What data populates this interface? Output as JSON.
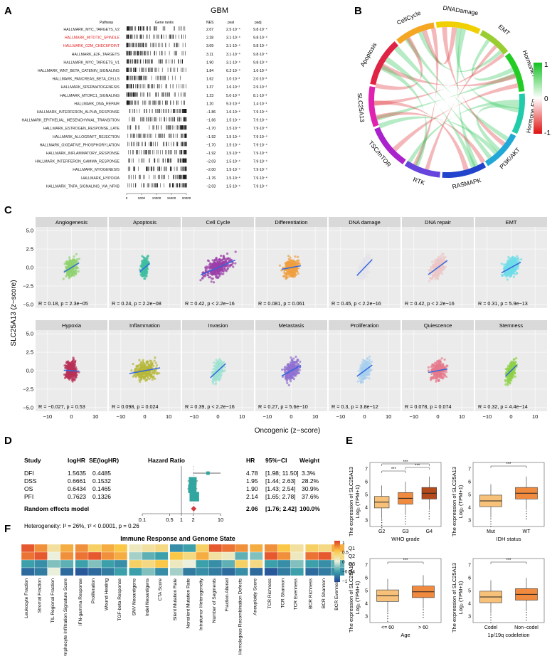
{
  "panel_letters": [
    "A",
    "B",
    "C",
    "D",
    "E",
    "F"
  ],
  "colors": {
    "red": "#e41a1c",
    "green": "#1aa84a",
    "fit_line": "#3366dd",
    "forest_box": "#2fa6a0",
    "diamond": "#d6383b",
    "box_light": "#f7c17a",
    "box_mid": "#f08a3e",
    "box_dark": "#b34a1c"
  },
  "panelA": {
    "title": "GBM",
    "headers": {
      "pathway": "Pathway",
      "ranks": "Gene ranks",
      "nes": "NES",
      "pval": "pval",
      "padj": "padj"
    },
    "axis_ticks": [
      "0",
      "5000",
      "10000",
      "15000",
      "20000"
    ],
    "rows": [
      {
        "name": "HALLMARK_MYC_TARGETS_V2",
        "nes": "2.07",
        "pval": "2.5·10⁻⁴",
        "padj": "9.8·10⁻⁴",
        "highlight": false
      },
      {
        "name": "HALLMARK_MITOTIC_SPINDLE",
        "nes": "2.28",
        "pval": "3.1·10⁻⁴",
        "padj": "9.8·10⁻⁴",
        "highlight": true
      },
      {
        "name": "HALLMARK_G2M_CHECKPOINT",
        "nes": "3.09",
        "pval": "3.1·10⁻⁴",
        "padj": "9.8·10⁻⁴",
        "highlight": true
      },
      {
        "name": "HALLMARK_E2F_TARGETS",
        "nes": "3.11",
        "pval": "3.1·10⁻⁴",
        "padj": "9.8·10⁻⁴",
        "highlight": false
      },
      {
        "name": "HALLMARK_MYC_TARGETS_V1",
        "nes": "1.90",
        "pval": "3.1·10⁻⁴",
        "padj": "9.8·10⁻⁴",
        "highlight": false
      },
      {
        "name": "HALLMARK_WNT_BETA_CATENIN_SIGNALING",
        "nes": "1.84",
        "pval": "6.2·10⁻⁴",
        "padj": "1.6·10⁻²",
        "highlight": false
      },
      {
        "name": "HALLMARK_PANCREAS_BETA_CELLS",
        "nes": "1.62",
        "pval": "1.0·10⁻²",
        "padj": "2.0·10⁻²",
        "highlight": false
      },
      {
        "name": "HALLMARK_SPERMATOGENESIS",
        "nes": "1.37",
        "pval": "1.6·10⁻²",
        "padj": "2.9·10⁻²",
        "highlight": false
      },
      {
        "name": "HALLMARK_MTORC1_SIGNALING",
        "nes": "1.23",
        "pval": "5.0·10⁻²",
        "padj": "8.1·10⁻²",
        "highlight": false
      },
      {
        "name": "HALLMARK_DNA_REPAIR",
        "nes": "1.20",
        "pval": "9.3·10⁻²",
        "padj": "1.4·10⁻¹",
        "highlight": false
      },
      {
        "name": "HALLMARK_INTERFERON_ALPHA_RESPONSE",
        "nes": "−1.86",
        "pval": "1.6·10⁻⁴",
        "padj": "7.9·10⁻⁴",
        "highlight": false
      },
      {
        "name": "HALLMARK_EPITHELIAL_MESENCHYMAL_TRANSITION",
        "nes": "−1.66",
        "pval": "1.5·10⁻⁴",
        "padj": "7.9·10⁻⁴",
        "highlight": false
      },
      {
        "name": "HALLMARK_ESTROGEN_RESPONSE_LATE",
        "nes": "−1.70",
        "pval": "1.5·10⁻⁴",
        "padj": "7.9·10⁻⁴",
        "highlight": false
      },
      {
        "name": "HALLMARK_ALLOGRAFT_REJECTION",
        "nes": "−1.92",
        "pval": "1.5·10⁻⁴",
        "padj": "7.9·10⁻⁴",
        "highlight": false
      },
      {
        "name": "HALLMARK_OXIDATIVE_PHOSPHORYLATION",
        "nes": "−1.70",
        "pval": "1.5·10⁻⁴",
        "padj": "7.9·10⁻⁴",
        "highlight": false
      },
      {
        "name": "HALLMARK_INFLAMMATORY_RESPONSE",
        "nes": "−1.92",
        "pval": "1.5·10⁻⁴",
        "padj": "7.9·10⁻⁴",
        "highlight": false
      },
      {
        "name": "HALLMARK_INTERFERON_GAMMA_RESPONSE",
        "nes": "−2.03",
        "pval": "1.5·10⁻⁴",
        "padj": "7.9·10⁻⁴",
        "highlight": false
      },
      {
        "name": "HALLMARK_MYOGENESIS",
        "nes": "−2.00",
        "pval": "1.5·10⁻⁴",
        "padj": "7.9·10⁻⁴",
        "highlight": false
      },
      {
        "name": "HALLMARK_HYPOXIA",
        "nes": "−1.76",
        "pval": "1.5·10⁻⁴",
        "padj": "7.9·10⁻⁴",
        "highlight": false
      },
      {
        "name": "HALLMARK_TNFA_SIGNALING_VIA_NFKB",
        "nes": "−2.03",
        "pval": "1.5·10⁻⁴",
        "padj": "7.9·10⁻⁴",
        "highlight": false
      }
    ]
  },
  "panelB": {
    "sectors": [
      {
        "name": "CellCycle",
        "color": "#f5a623",
        "span": 1.0
      },
      {
        "name": "DNADamage",
        "color": "#f0d000",
        "span": 1.1
      },
      {
        "name": "EMT",
        "color": "#9acd32",
        "span": 0.8
      },
      {
        "name": "Hormone AR",
        "color": "#22cc22",
        "span": 1.0
      },
      {
        "name": "Hormone ER",
        "color": "#22ccaa",
        "span": 1.0
      },
      {
        "name": "PI3K/AKT",
        "color": "#22a8d6",
        "span": 1.0
      },
      {
        "name": "RASMAPK",
        "color": "#2244cc",
        "span": 1.1
      },
      {
        "name": "RTK",
        "color": "#6644dd",
        "span": 0.9
      },
      {
        "name": "TSC/mTOR",
        "color": "#aa22cc",
        "span": 1.1
      },
      {
        "name": "SLC25A13",
        "color": "#e022b0",
        "span": 1.0
      },
      {
        "name": "Apoptosis",
        "color": "#e02244",
        "span": 1.2
      }
    ],
    "legend": {
      "top": "1",
      "mid": "0",
      "bottom": "-1"
    }
  },
  "panelC": {
    "ylabel": "SLC25A13 (z−score)",
    "xlabel": "Oncogenic (z−score)",
    "y_ticks": [
      "5.0",
      "2.5",
      "0.0",
      "−2.5",
      "−5.0"
    ],
    "x_ticks": [
      "−10",
      "0",
      "10"
    ],
    "facets": [
      {
        "name": "Angiogenesis",
        "stat": "R = 0.18, p = 2.3e−05",
        "color": "#8fd16e",
        "slope": 0.1,
        "spread": 4,
        "dens": 220
      },
      {
        "name": "Apoptosis",
        "stat": "R = 0.24, p = 2.2e−08",
        "color": "#3fbfa0",
        "slope": 0.14,
        "spread": 2.5,
        "dens": 260
      },
      {
        "name": "Cell Cycle",
        "stat": "R = 0.42, p < 2.2e−16",
        "color": "#9b3fa8",
        "slope": 0.07,
        "spread": 9,
        "dens": 320
      },
      {
        "name": "Differentiation",
        "stat": "R = 0.081, p = 0.061",
        "color": "#f0a040",
        "slope": 0.03,
        "spread": 5,
        "dens": 300
      },
      {
        "name": "DNA damage",
        "stat": "R = 0.45, p < 2.2e−16",
        "color": "#e4e4ea",
        "slope": 0.17,
        "spread": 4,
        "dens": 260
      },
      {
        "name": "DNA repair",
        "stat": "R = 0.42, p < 2.2e−16",
        "color": "#edc7c7",
        "slope": 0.12,
        "spread": 5,
        "dens": 280
      },
      {
        "name": "EMT",
        "stat": "R = 0.31, p = 5.9e−13",
        "color": "#6fdde8",
        "slope": 0.09,
        "spread": 5,
        "dens": 300
      },
      {
        "name": "Hypoxia",
        "stat": "R = −0.027, p = 0.53",
        "color": "#b83055",
        "slope": -0.01,
        "spread": 4,
        "dens": 300
      },
      {
        "name": "Inflammation",
        "stat": "R = 0.098, p = 0.024",
        "color": "#b6b83a",
        "slope": 0.03,
        "spread": 8,
        "dens": 300
      },
      {
        "name": "Invasion",
        "stat": "R = 0.39, p < 2.2e−16",
        "color": "#9fe3d3",
        "slope": 0.15,
        "spread": 4,
        "dens": 280
      },
      {
        "name": "Metastasis",
        "stat": "R = 0.27, p = 5.6e−10",
        "color": "#9070d0",
        "slope": 0.09,
        "spread": 5,
        "dens": 300
      },
      {
        "name": "Proliferation",
        "stat": "R = 0.3, p = 3.8e−12",
        "color": "#a8d0ee",
        "slope": 0.12,
        "spread": 4,
        "dens": 260
      },
      {
        "name": "Quiescence",
        "stat": "R = 0.078, p = 0.074",
        "color": "#e67b8c",
        "slope": 0.03,
        "spread": 5,
        "dens": 300
      },
      {
        "name": "Stemness",
        "stat": "R = 0.32, p = 4.4e−14",
        "color": "#8fd14a",
        "slope": 0.16,
        "spread": 3,
        "dens": 260
      }
    ]
  },
  "panelD": {
    "headers": {
      "study": "Study",
      "loghr": "logHR",
      "se": "SE(logHR)",
      "hrplot": "Hazard Ratio",
      "hr": "HR",
      "ci": "95%−CI",
      "weight": "Weight"
    },
    "rows": [
      {
        "study": "DFI",
        "loghr": "1.5635",
        "se": "0.4485",
        "hr": "4.78",
        "ci": "[1.98; 11.50]",
        "weight": "3.3%",
        "hr_val": 4.78,
        "lo": 1.98,
        "hi": 11.5
      },
      {
        "study": "DSS",
        "loghr": "0.6661",
        "se": "0.1532",
        "hr": "1.95",
        "ci": "[1.44; 2.63]",
        "weight": "28.2%",
        "hr_val": 1.95,
        "lo": 1.44,
        "hi": 2.63
      },
      {
        "study": "OS",
        "loghr": "0.6434",
        "se": "0.1465",
        "hr": "1.90",
        "ci": "[1.43; 2.54]",
        "weight": "30.9%",
        "hr_val": 1.9,
        "lo": 1.43,
        "hi": 2.54
      },
      {
        "study": "PFI",
        "loghr": "0.7623",
        "se": "0.1326",
        "hr": "2.14",
        "ci": "[1.65; 2.78]",
        "weight": "37.6%",
        "hr_val": 2.14,
        "lo": 1.65,
        "hi": 2.78
      }
    ],
    "summary": {
      "label": "Random effects model",
      "hr": "2.06",
      "ci": "[1.76; 2.42]",
      "weight": "100.0%",
      "hr_val": 2.06,
      "lo": 1.76,
      "hi": 2.42
    },
    "heterogeneity": "Heterogeneity: I² = 26%, τ² < 0.0001, p = 0.26",
    "axis_ticks": [
      "0.1",
      "0.5",
      "1",
      "2",
      "10"
    ]
  },
  "panelE": {
    "ylabel": "The expression of SLC25A13",
    "ylabel2": "Log₂ (TPM+1)",
    "y_ticks": [
      "7",
      "6",
      "5",
      "4",
      "3"
    ],
    "plots": [
      {
        "xlabel": "WHO grade",
        "cats": [
          "G2",
          "G3",
          "G4"
        ],
        "sig": [
          "***",
          "***",
          "***"
        ]
      },
      {
        "xlabel": "IDH status",
        "cats": [
          "Mut",
          "WT"
        ],
        "sig": [
          "***"
        ]
      },
      {
        "xlabel": "Age",
        "cats": [
          "<= 60",
          "> 60"
        ],
        "sig": [
          "***"
        ]
      },
      {
        "xlabel": "1p/19q codeletion",
        "cats": [
          "Codel",
          "Non−codel"
        ],
        "sig": [
          "***"
        ]
      }
    ]
  },
  "panelF": {
    "title": "Immune Response and Genome State",
    "rows": [
      "Q1",
      "Q2",
      "Q3",
      "Q4"
    ],
    "legend_ticks": [
      "1",
      "0.5",
      "0",
      "−0.5",
      "−1"
    ],
    "columns": [
      "Leukocyte Fraction",
      "Stromal Fraction",
      "TIL Regional Fraction",
      "Lymphocyte Infiltration Signature Score",
      "IFN-gamma Response",
      "Proliferation",
      "Wound Healing",
      "TGF-beta Response",
      "SNV Neoantigens",
      "Indel Neoantigens",
      "CTA Score",
      "Silent Mutation Rate",
      "Nonsilent Mutation Rate",
      "Intratumor Heterogeneity",
      "Number of Segments",
      "Fraction Altered",
      "Homologous Recombination Defects",
      "Aneuploidy Score",
      "TCR Richness",
      "TCR Shannon",
      "TCR Evenness",
      "BCR Richness",
      "BCR Shannon",
      "BCR Evenness"
    ],
    "groups": [
      4,
      4,
      3,
      6,
      1,
      3,
      3
    ],
    "values": [
      [
        0.9,
        0.7,
        0.2,
        0.6,
        0.7,
        0.4,
        0.6,
        0.5,
        0.1,
        0.2,
        0.3,
        -0.6,
        -0.5,
        0.4,
        0.9,
        0.8,
        0.7,
        0.6,
        0.7,
        0.5,
        0.2,
        0.4,
        0.3,
        0.6
      ],
      [
        0.8,
        0.9,
        0.0,
        0.7,
        0.8,
        0.9,
        0.7,
        0.6,
        -0.2,
        -0.4,
        -0.5,
        0.5,
        0.3,
        0.6,
        0.2,
        0.1,
        -0.4,
        -0.3,
        0.9,
        0.7,
        0.1,
        0.8,
        0.9,
        0.3
      ],
      [
        -0.5,
        -0.6,
        -0.3,
        -0.4,
        -0.5,
        -0.3,
        -0.5,
        -0.6,
        0.4,
        0.3,
        0.5,
        0.1,
        0.0,
        -0.5,
        -0.6,
        -0.4,
        0.4,
        0.3,
        -0.5,
        -0.6,
        -0.3,
        -0.5,
        -0.6,
        -0.4
      ],
      [
        -0.8,
        -0.7,
        0.0,
        -0.8,
        -0.9,
        -0.8,
        -0.7,
        -0.5,
        -0.5,
        -0.3,
        -0.6,
        -0.2,
        -0.7,
        -0.6,
        -0.7,
        -0.8,
        -0.6,
        -0.8,
        -0.9,
        -0.7,
        -0.5,
        -0.8,
        -0.7,
        -0.6
      ]
    ]
  }
}
